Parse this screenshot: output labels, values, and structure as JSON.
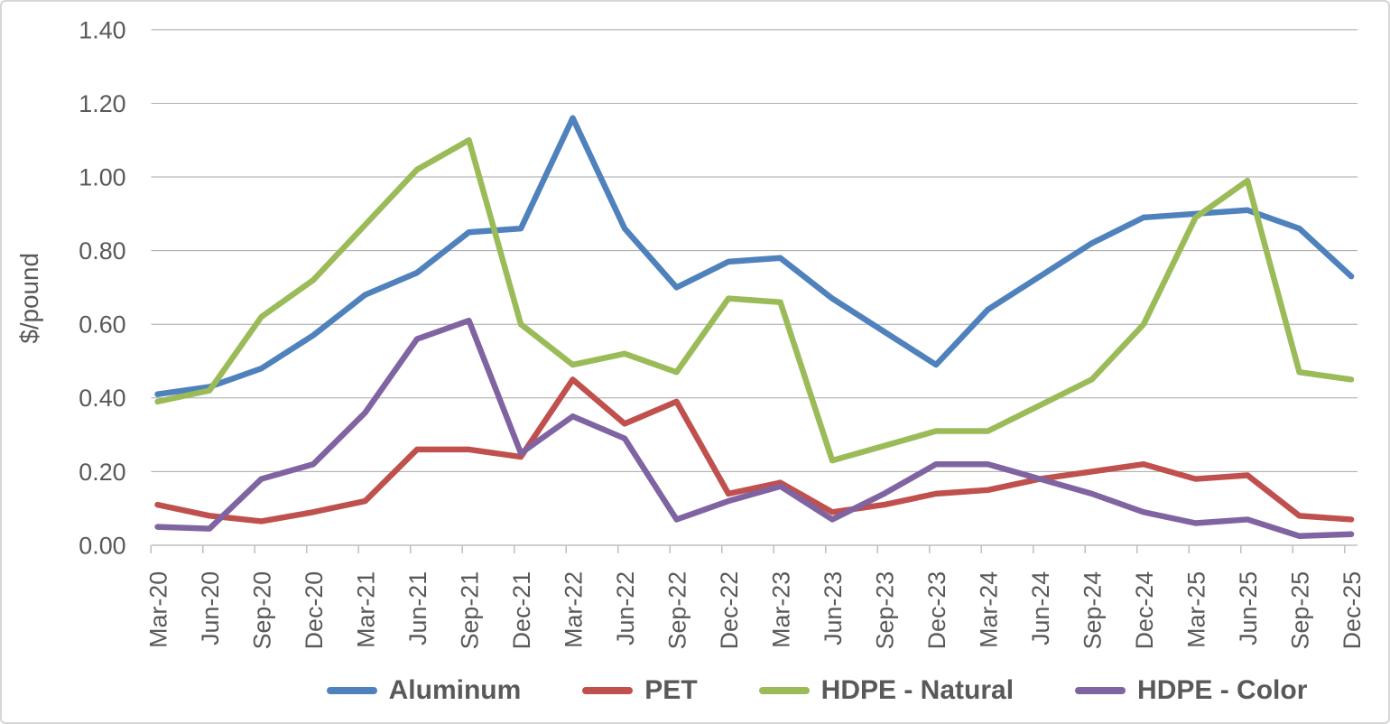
{
  "chart_data": {
    "type": "line",
    "title": "",
    "xlabel": "",
    "ylabel": "$/pound",
    "ylim": [
      0.0,
      1.4
    ],
    "ytick_step": 0.2,
    "y_tick_labels": [
      "0.00",
      "0.20",
      "0.40",
      "0.60",
      "0.80",
      "1.00",
      "1.20",
      "1.40"
    ],
    "grid": "horizontal",
    "legend_position": "bottom",
    "categories": [
      "Mar-20",
      "Jun-20",
      "Sep-20",
      "Dec-20",
      "Mar-21",
      "Jun-21",
      "Sep-21",
      "Dec-21",
      "Mar-22",
      "Jun-22",
      "Sep-22",
      "Dec-22",
      "Mar-23",
      "Jun-23",
      "Sep-23",
      "Dec-23",
      "Mar-24",
      "Jun-24",
      "Sep-24",
      "Dec-24",
      "Mar-25",
      "Jun-25",
      "Sep-25",
      "Dec-25"
    ],
    "series": [
      {
        "name": "Aluminum",
        "color": "#4F81BD",
        "values": [
          0.41,
          0.43,
          0.48,
          0.57,
          0.68,
          0.74,
          0.85,
          0.86,
          1.16,
          0.86,
          0.7,
          0.77,
          0.78,
          0.67,
          0.58,
          0.49,
          0.64,
          0.73,
          0.82,
          0.89,
          0.9,
          0.91,
          0.86,
          0.73
        ]
      },
      {
        "name": "PET",
        "color": "#C0504D",
        "values": [
          0.11,
          0.08,
          0.065,
          0.09,
          0.12,
          0.26,
          0.26,
          0.24,
          0.45,
          0.33,
          0.39,
          0.14,
          0.17,
          0.09,
          0.11,
          0.14,
          0.15,
          0.18,
          0.2,
          0.22,
          0.18,
          0.19,
          0.08,
          0.07
        ]
      },
      {
        "name": "HDPE - Natural",
        "color": "#9BBB59",
        "values": [
          0.39,
          0.42,
          0.62,
          0.72,
          0.87,
          1.02,
          1.1,
          0.6,
          0.49,
          0.52,
          0.47,
          0.67,
          0.66,
          0.23,
          0.27,
          0.31,
          0.31,
          0.38,
          0.45,
          0.6,
          0.89,
          0.99,
          0.47,
          0.45
        ]
      },
      {
        "name": "HDPE - Color",
        "color": "#8064A2",
        "values": [
          0.05,
          0.045,
          0.18,
          0.22,
          0.36,
          0.56,
          0.61,
          0.25,
          0.35,
          0.29,
          0.07,
          0.12,
          0.16,
          0.07,
          0.14,
          0.22,
          0.22,
          0.18,
          0.14,
          0.09,
          0.06,
          0.07,
          0.025,
          0.03
        ]
      }
    ],
    "colors": {
      "gridline": "#a6a6a6",
      "axis": "#bfbfbf",
      "tick_text": "#595959",
      "legend_text": "#595959",
      "background": "#ffffff"
    }
  }
}
